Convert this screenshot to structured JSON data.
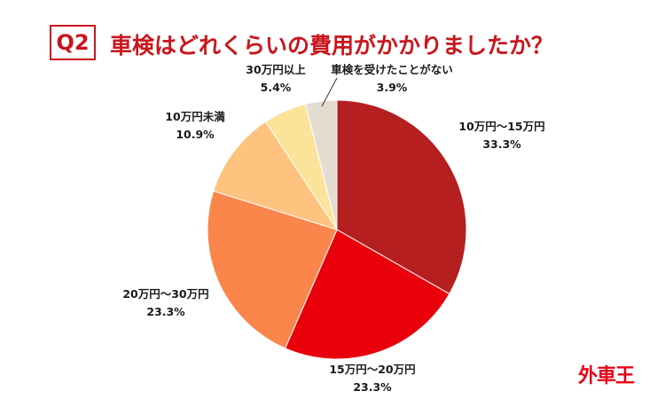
{
  "header": {
    "badge": "Q2",
    "title": "車検はどれくらいの費用がかかりましたか？"
  },
  "brand": {
    "logo_text": "外車王",
    "logo_color": "#e60012"
  },
  "chart_data": {
    "type": "pie",
    "start_angle_deg": 0,
    "direction": "clockwise",
    "slices": [
      {
        "label": "10万円〜15万円",
        "value": 33.3,
        "value_label": "33.3%",
        "color": "#b51f20"
      },
      {
        "label": "15万円〜20万円",
        "value": 23.3,
        "value_label": "23.3%",
        "color": "#e8000b"
      },
      {
        "label": "20万円〜30万円",
        "value": 23.3,
        "value_label": "23.3%",
        "color": "#fb864b"
      },
      {
        "label": "10万円未満",
        "value": 10.9,
        "value_label": "10.9%",
        "color": "#fdc37f"
      },
      {
        "label": "30万円以上",
        "value": 5.4,
        "value_label": "5.4%",
        "color": "#fbe39a"
      },
      {
        "label": "車検を受けたことがない",
        "value": 3.9,
        "value_label": "3.9%",
        "color": "#e4dcd0"
      }
    ]
  }
}
